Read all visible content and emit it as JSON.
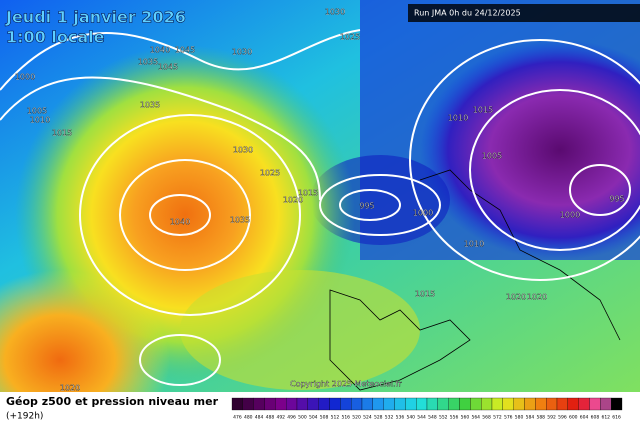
{
  "header": {
    "title": "Jeudi 1 janvier 2026",
    "subtitle": "1:00 locale",
    "run": "Run JMA 0h du 24/12/2025"
  },
  "isobar_labels": [
    "1030",
    "1025",
    "1040",
    "1045",
    "1035",
    "1045",
    "1030",
    "1000",
    "1005",
    "1010",
    "1015",
    "1035",
    "1030",
    "1025",
    "1015",
    "1020",
    "1040",
    "1035",
    "995",
    "1000",
    "1010",
    "1015",
    "1005",
    "1000",
    "995",
    "1010",
    "1015",
    "1020",
    "1020",
    "1020"
  ],
  "copyright": "Copyright 2025 Meteociel.fr",
  "footer": {
    "title": "Géop z500 et pression niveau mer",
    "lead": "(+192h)"
  },
  "scale": {
    "labels": [
      "476",
      "480",
      "484",
      "488",
      "492",
      "496",
      "500",
      "504",
      "508",
      "512",
      "516",
      "520",
      "524",
      "528",
      "532",
      "536",
      "540",
      "544",
      "548",
      "552",
      "556",
      "560",
      "564",
      "568",
      "572",
      "576",
      "580",
      "584",
      "588",
      "592",
      "596",
      "600",
      "604",
      "608",
      "612",
      "616"
    ]
  }
}
